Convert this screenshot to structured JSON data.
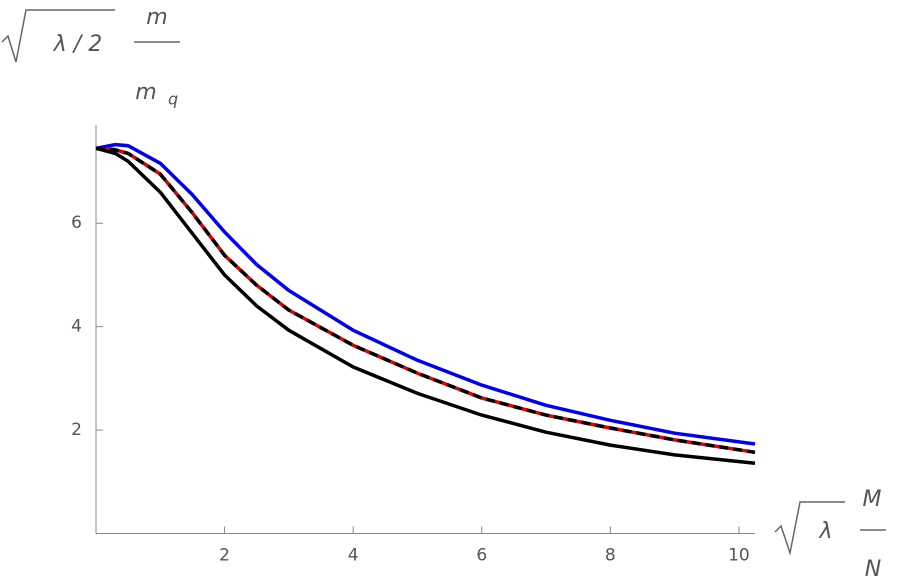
{
  "chart_data": {
    "type": "line",
    "x": [
      0,
      0.3,
      0.5,
      1,
      1.5,
      2,
      2.5,
      3,
      4,
      5,
      6,
      7,
      8,
      9,
      10.25
    ],
    "series": [
      {
        "color": "#0000ee",
        "values": [
          7.45,
          7.52,
          7.5,
          7.16,
          6.55,
          5.83,
          5.2,
          4.7,
          3.93,
          3.35,
          2.87,
          2.48,
          2.19,
          1.94,
          1.73
        ]
      },
      {
        "color": "#e00000",
        "values": [
          7.45,
          7.42,
          7.35,
          6.95,
          6.2,
          5.38,
          4.8,
          4.32,
          3.64,
          3.1,
          2.62,
          2.29,
          2.04,
          1.81,
          1.57
        ]
      },
      {
        "color": "#000000",
        "dashed": true,
        "values": [
          7.45,
          7.42,
          7.35,
          6.95,
          6.2,
          5.38,
          4.8,
          4.32,
          3.64,
          3.1,
          2.62,
          2.29,
          2.04,
          1.81,
          1.57
        ]
      },
      {
        "color": "#000000",
        "values": [
          7.45,
          7.35,
          7.2,
          6.6,
          5.8,
          5.0,
          4.4,
          3.93,
          3.22,
          2.71,
          2.29,
          1.96,
          1.71,
          1.52,
          1.36
        ]
      }
    ],
    "xlim": [
      0,
      10.25
    ],
    "ylim": [
      0,
      7.9
    ],
    "xticks": [
      2,
      4,
      6,
      8,
      10
    ],
    "yticks": [
      2,
      4,
      6
    ],
    "y_label": {
      "radicand": "λ / 2",
      "numerator": "m",
      "denominator": "m",
      "subscript": "q"
    },
    "x_label": {
      "radicand": "λ",
      "numerator": "M",
      "denominator": "N"
    }
  }
}
